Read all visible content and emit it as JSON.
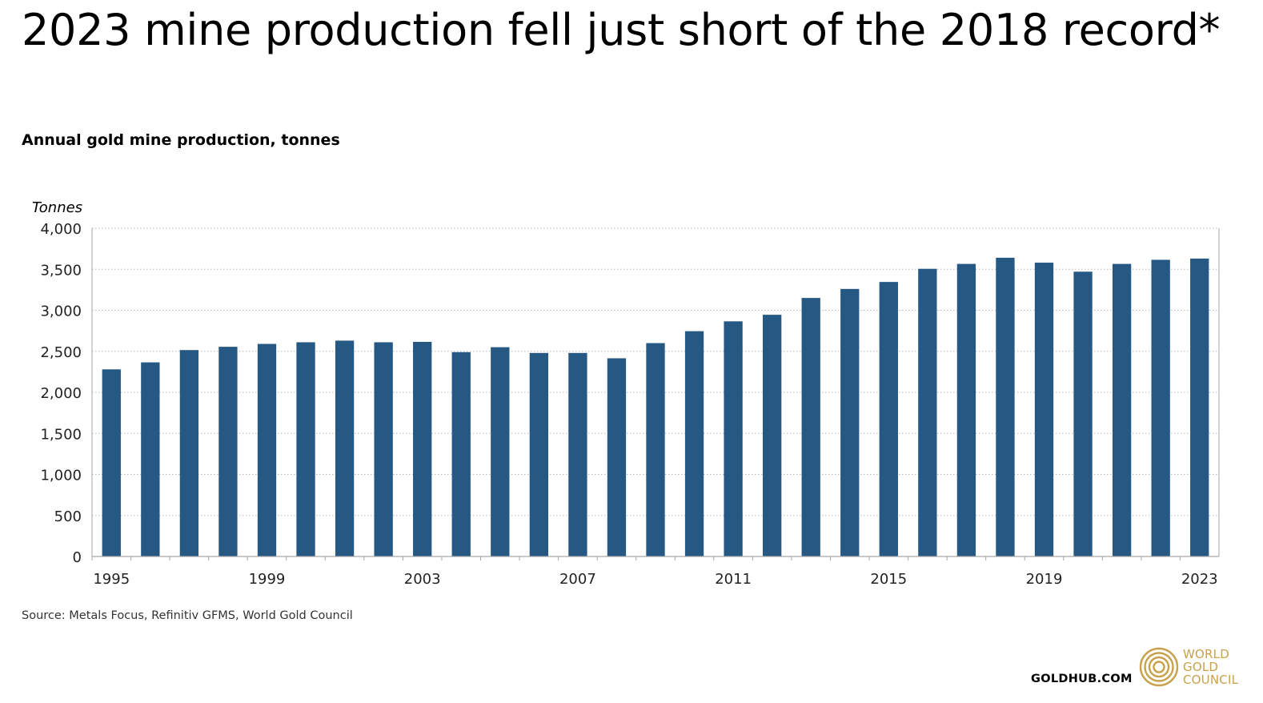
{
  "title": "2023 mine production fell just short of the 2018 record*",
  "subtitle": "Annual gold mine production, tonnes",
  "source": "Source: Metals Focus, Refinitiv GFMS, World Gold Council",
  "footer": {
    "site": "GOLDHUB.COM",
    "logo_lines": [
      "WORLD",
      "GOLD",
      "COUNCIL"
    ]
  },
  "colors": {
    "bar": "#255883",
    "grid": "#b9b9b9",
    "axis": "#a6a6a6",
    "logo": "#c8a24a"
  },
  "chart_data": {
    "type": "bar",
    "ylabel": "Tonnes",
    "ylim": [
      0,
      4000
    ],
    "yticks": [
      0,
      500,
      1000,
      1500,
      2000,
      2500,
      3000,
      3500,
      4000
    ],
    "ytick_labels": [
      "0",
      "500",
      "1,000",
      "1,500",
      "2,000",
      "2,500",
      "3,000",
      "3,500",
      "4,000"
    ],
    "xtick_labels": [
      "1995",
      "1999",
      "2003",
      "2007",
      "2011",
      "2015",
      "2019",
      "2023"
    ],
    "grid": true,
    "categories": [
      "1995",
      "1996",
      "1997",
      "1998",
      "1999",
      "2000",
      "2001",
      "2002",
      "2003",
      "2004",
      "2005",
      "2006",
      "2007",
      "2008",
      "2009",
      "2010",
      "2011",
      "2012",
      "2013",
      "2014",
      "2015",
      "2016",
      "2017",
      "2018",
      "2019",
      "2020",
      "2021",
      "2022",
      "2023"
    ],
    "values": [
      2280,
      2365,
      2515,
      2555,
      2590,
      2610,
      2630,
      2610,
      2615,
      2490,
      2550,
      2480,
      2480,
      2415,
      2600,
      2745,
      2865,
      2945,
      3150,
      3260,
      3345,
      3505,
      3565,
      3640,
      3580,
      3470,
      3565,
      3615,
      3630
    ]
  }
}
